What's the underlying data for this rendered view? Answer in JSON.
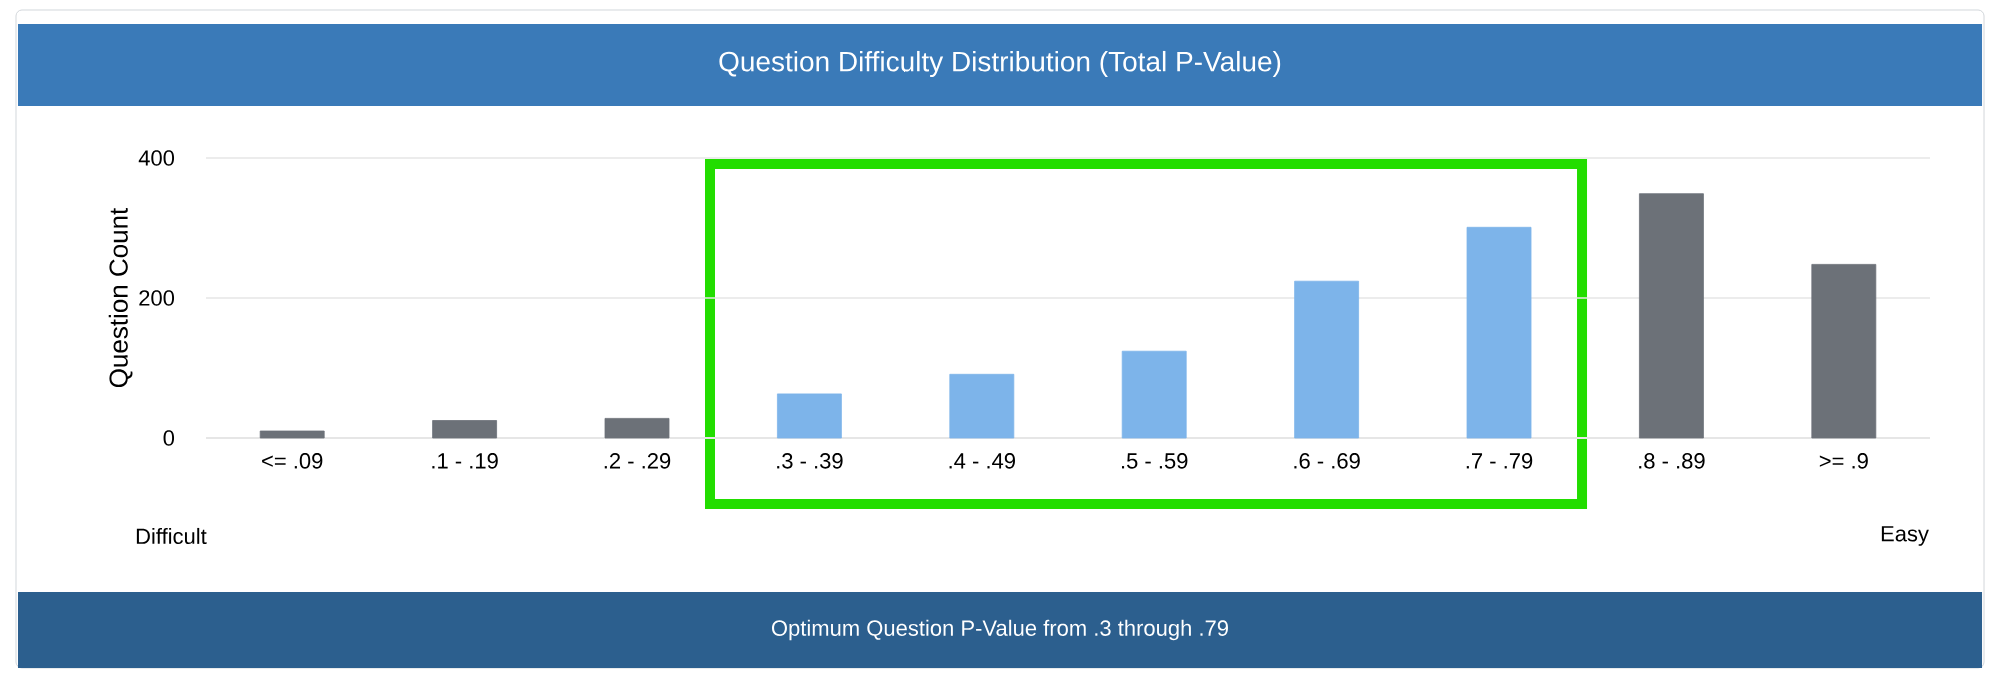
{
  "chart_data": {
    "type": "bar",
    "title": "Question Difficulty Distribution (Total P-Value)",
    "ylabel": "Question Count",
    "categories": [
      "<= .09",
      ".1 - .19",
      ".2 - .29",
      ".3 - .39",
      ".4 - .49",
      ".5 - .59",
      ".6 - .69",
      ".7 - .79",
      ".8 - .89",
      ">= .9"
    ],
    "values": [
      10,
      25,
      28,
      63,
      91,
      124,
      224,
      301,
      349,
      248
    ],
    "colors": [
      "#6c7178",
      "#6c7178",
      "#6c7178",
      "#7db4ea",
      "#7db4ea",
      "#7db4ea",
      "#7db4ea",
      "#7db4ea",
      "#6c7178",
      "#6c7178"
    ],
    "ylim": [
      0,
      400
    ],
    "yticks": [
      0,
      200,
      400
    ],
    "grid": "y",
    "annotations": [
      "Difficult",
      "Easy",
      "Optimum Question P-Value from .3 through .79"
    ]
  }
}
